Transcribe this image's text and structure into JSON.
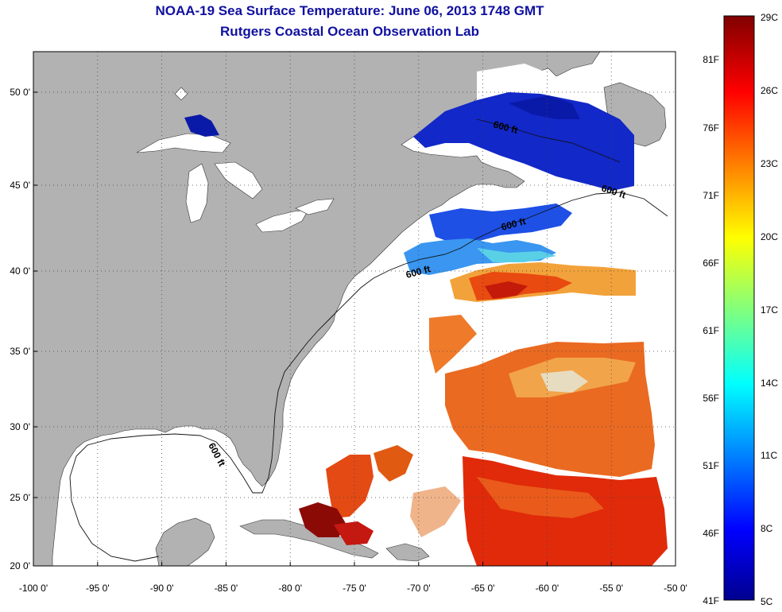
{
  "title": "NOAA-19 Sea Surface Temperature:  June 06, 2013 1748 GMT",
  "subtitle": "Rutgers Coastal Ocean Observation Lab",
  "map": {
    "lon_range": [
      -100,
      -50
    ],
    "lat_range": [
      20,
      52.5
    ],
    "lon_ticks": [
      "-100 0'",
      "-95 0'",
      "-90 0'",
      "-85 0'",
      "-80 0'",
      "-75 0'",
      "-70 0'",
      "-65 0'",
      "-60 0'",
      "-55 0'",
      "-50 0'"
    ],
    "lat_ticks": [
      "20 0'",
      "25 0'",
      "30 0'",
      "35 0'",
      "40 0'",
      "45 0'",
      "50 0'"
    ],
    "contour_labels": [
      "600 ft",
      "600 ft",
      "600 ft",
      "600 ft",
      "600 ft"
    ],
    "colors": {
      "land": "#b2b2b2",
      "ocean": "#ffffff",
      "grid": "#333333"
    }
  },
  "colorbar": {
    "f_labels": [
      "81F",
      "76F",
      "71F",
      "66F",
      "61F",
      "56F",
      "51F",
      "46F",
      "41F"
    ],
    "c_labels": [
      "29C",
      "26C",
      "23C",
      "20C",
      "17C",
      "14C",
      "11C",
      "8C",
      "5C"
    ]
  }
}
